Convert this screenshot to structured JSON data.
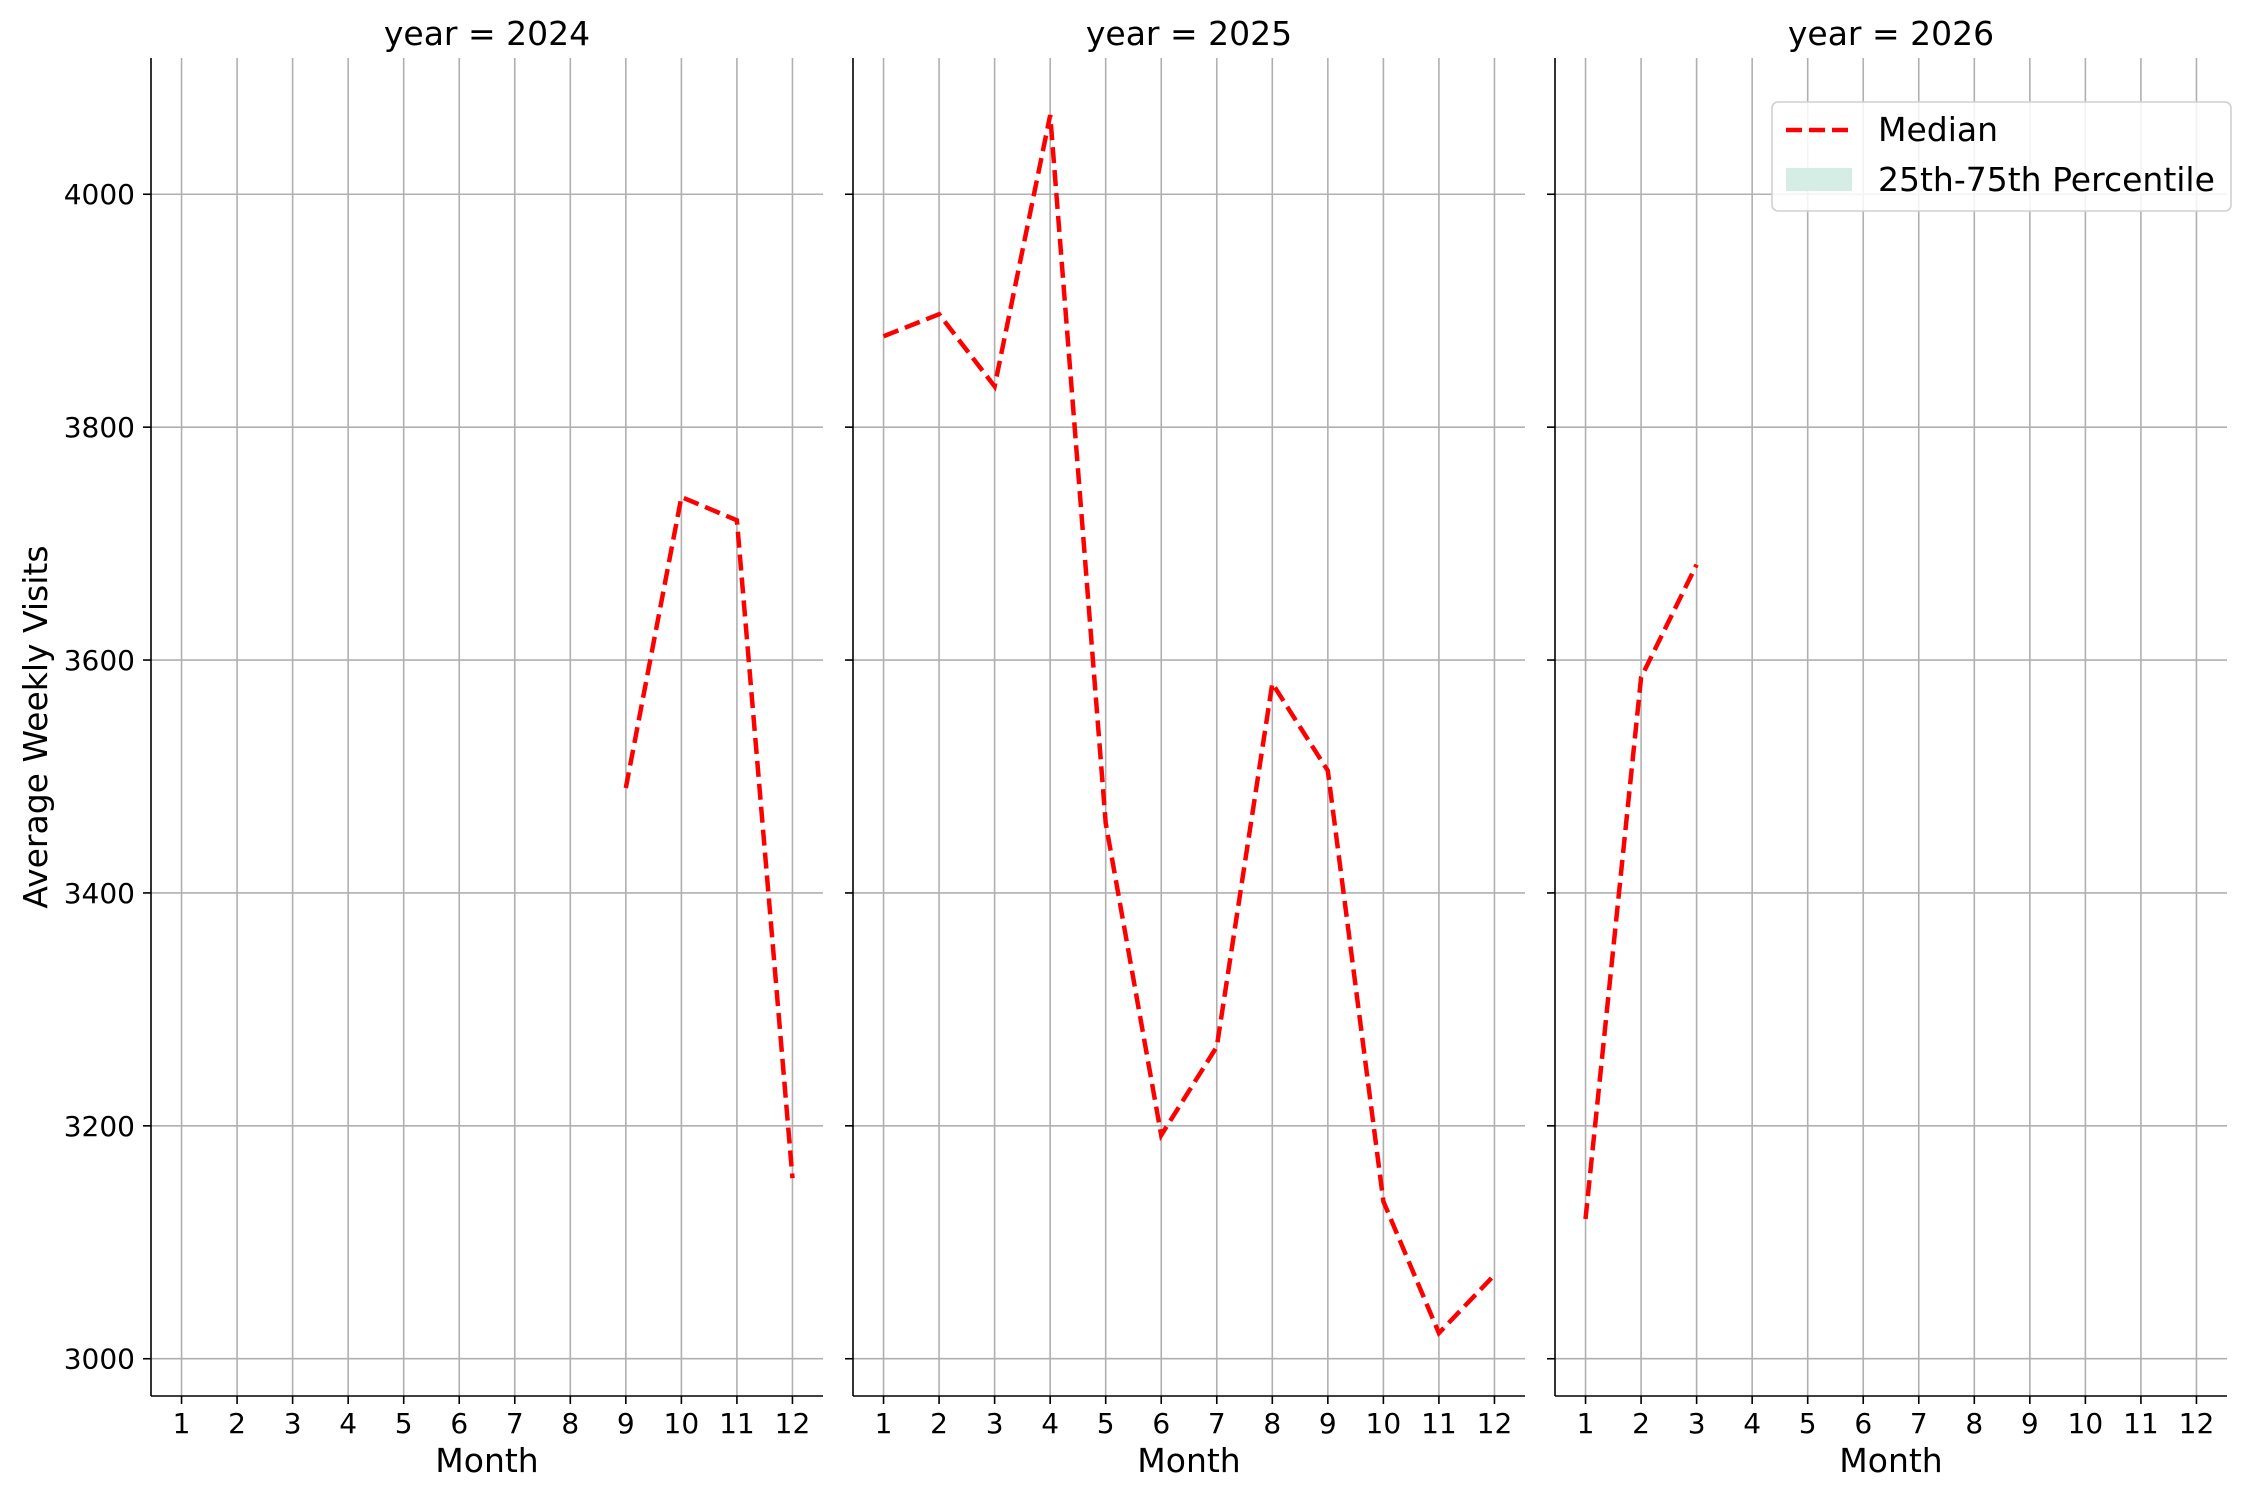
{
  "chart_data": {
    "type": "line",
    "facet_variable": "year",
    "panels": [
      {
        "title": "year = 2024",
        "series": [
          {
            "name": "Median",
            "x": [
              9,
              10,
              11,
              12
            ],
            "y": [
              3490,
              3740,
              3720,
              3155
            ]
          }
        ]
      },
      {
        "title": "year = 2025",
        "series": [
          {
            "name": "Median",
            "x": [
              1,
              2,
              3,
              4,
              5,
              6,
              7,
              8,
              9,
              10,
              11,
              12
            ],
            "y": [
              3878,
              3897,
              3835,
              4068,
              3460,
              3192,
              3268,
              3580,
              3505,
              3135,
              3022,
              3072
            ]
          }
        ]
      },
      {
        "title": "year = 2026",
        "series": [
          {
            "name": "Median",
            "x": [
              1,
              2,
              3
            ],
            "y": [
              3120,
              3585,
              3682
            ]
          }
        ]
      }
    ],
    "xlabel": "Month",
    "ylabel": "Average Weekly Visits",
    "x_ticks": [
      "1",
      "2",
      "3",
      "4",
      "5",
      "6",
      "7",
      "8",
      "9",
      "10",
      "11",
      "12"
    ],
    "y_ticks": [
      "3000",
      "3200",
      "3400",
      "3600",
      "3800",
      "4000"
    ],
    "xlim": [
      0.45,
      12.55
    ],
    "ylim": [
      2968,
      4117
    ],
    "grid": true,
    "legend": {
      "location": "top-right of third panel",
      "entries": [
        {
          "label": "Median",
          "style": "dashed-line",
          "color": "#ff0000"
        },
        {
          "label": "25th-75th Percentile",
          "style": "filled-patch",
          "color": "#d6ede6"
        }
      ]
    },
    "colors": {
      "median_line": "#ff0000",
      "percentile_band": "#d6ede6",
      "grid": "#b0b0b0",
      "axis": "#000000"
    }
  }
}
